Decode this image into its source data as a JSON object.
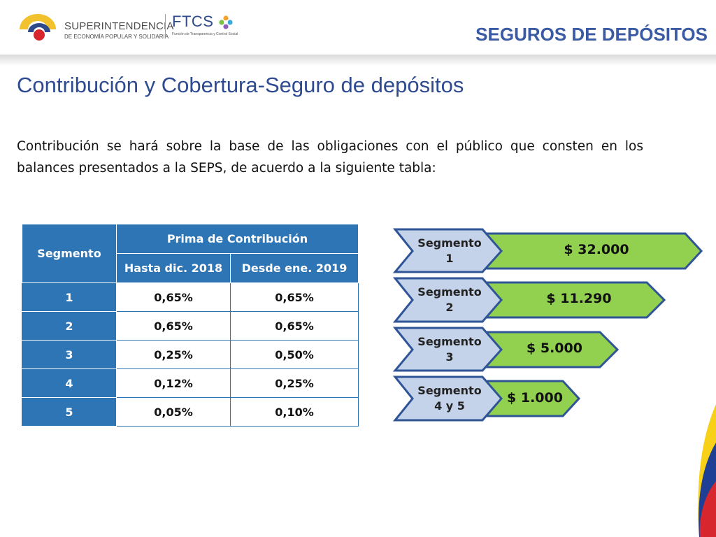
{
  "header": {
    "logo_seps_name": "SUPERINTENDENCIA",
    "logo_seps_sub": "DE ECONOMÍA POPULAR Y SOLIDARIA",
    "logo_ftcs_name": "FTCS",
    "logo_ftcs_sub": "Función de Transparencia y Control Social",
    "section_title": "SEGUROS DE DEPÓSITOS"
  },
  "page_title": "Contribución y Cobertura-Seguro de depósitos",
  "intro_text": "Contribución se hará sobre la base de las obligaciones con el público que consten en los balances presentados a la SEPS, de acuerdo a la siguiente tabla:",
  "table": {
    "col_segment": "Segmento",
    "col_group": "Prima de Contribución",
    "col_a": "Hasta dic. 2018",
    "col_b": "Desde ene. 2019",
    "rows": [
      {
        "segment": "1",
        "a": "0,65%",
        "b": "0,65%"
      },
      {
        "segment": "2",
        "a": "0,65%",
        "b": "0,65%"
      },
      {
        "segment": "3",
        "a": "0,25%",
        "b": "0,50%"
      },
      {
        "segment": "4",
        "a": "0,12%",
        "b": "0,25%"
      },
      {
        "segment": "5",
        "a": "0,05%",
        "b": "0,10%"
      }
    ]
  },
  "coverage": [
    {
      "line1": "Segmento",
      "line2": "1",
      "amount": "$ 32.000"
    },
    {
      "line1": "Segmento",
      "line2": "2",
      "amount": "$ 11.290"
    },
    {
      "line1": "Segmento",
      "line2": "3",
      "amount": "$ 5.000"
    },
    {
      "line1": "Segmento",
      "line2": "4 y 5",
      "amount": "$ 1.000"
    }
  ],
  "colors": {
    "title_blue": "#2e4b91",
    "table_blue": "#2e75b6",
    "chevron_blue": "#c5d3ea",
    "chevron_border": "#2f5597",
    "amount_green": "#92d050"
  }
}
